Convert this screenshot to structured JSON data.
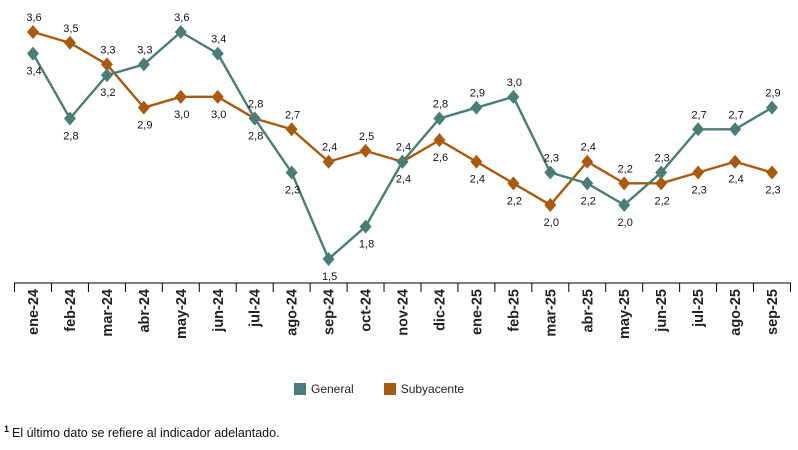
{
  "chart_data": {
    "type": "line",
    "categories": [
      "ene-24",
      "feb-24",
      "mar-24",
      "abr-24",
      "may-24",
      "jun-24",
      "jul-24",
      "ago-24",
      "sep-24",
      "oct-24",
      "nov-24",
      "dic-24",
      "ene-25",
      "feb-25",
      "mar-25",
      "abr-25",
      "may-25",
      "jun-25",
      "jul-25",
      "ago-25",
      "sep-25"
    ],
    "series": [
      {
        "name": "General",
        "color": "#4a7d78",
        "values": [
          3.4,
          2.8,
          3.2,
          3.3,
          3.6,
          3.4,
          2.8,
          2.3,
          1.5,
          1.8,
          2.4,
          2.8,
          2.9,
          3.0,
          2.3,
          2.2,
          2.0,
          2.3,
          2.7,
          2.7,
          2.9
        ],
        "labels": [
          "3,4",
          "2,8",
          "3,2",
          "3,3",
          "3,6",
          "3,4",
          "2,8",
          "2,3",
          "1,5",
          "1,8",
          "2,4",
          "2,8",
          "2,9",
          "3,0",
          "2,3",
          "2,2",
          "2,0",
          "2,3",
          "2,7",
          "2,7",
          "2,9"
        ]
      },
      {
        "name": "Subyacente",
        "color": "#a85a10",
        "values": [
          3.6,
          3.5,
          3.3,
          2.9,
          3.0,
          3.0,
          2.8,
          2.7,
          2.4,
          2.5,
          2.4,
          2.6,
          2.4,
          2.2,
          2.0,
          2.4,
          2.2,
          2.2,
          2.3,
          2.4,
          2.3
        ],
        "labels": [
          "3,6",
          "3,5",
          "3,3",
          "2,9",
          "3,0",
          "3,0",
          "2,8",
          "2,7",
          "2,4",
          "2,5",
          "2,4",
          "2,6",
          "2,4",
          "2,2",
          "2,0",
          "2,4",
          "2,2",
          "2,2",
          "2,3",
          "2,4",
          "2,3"
        ]
      }
    ],
    "ylim": [
      1.3,
      3.8
    ],
    "grid": false,
    "legend_position": "bottom-center"
  },
  "legend": {
    "general": "General",
    "subyacente": "Subyacente"
  },
  "footnote": {
    "marker": "1",
    "text": "El último dato se refiere al indicador adelantado."
  }
}
